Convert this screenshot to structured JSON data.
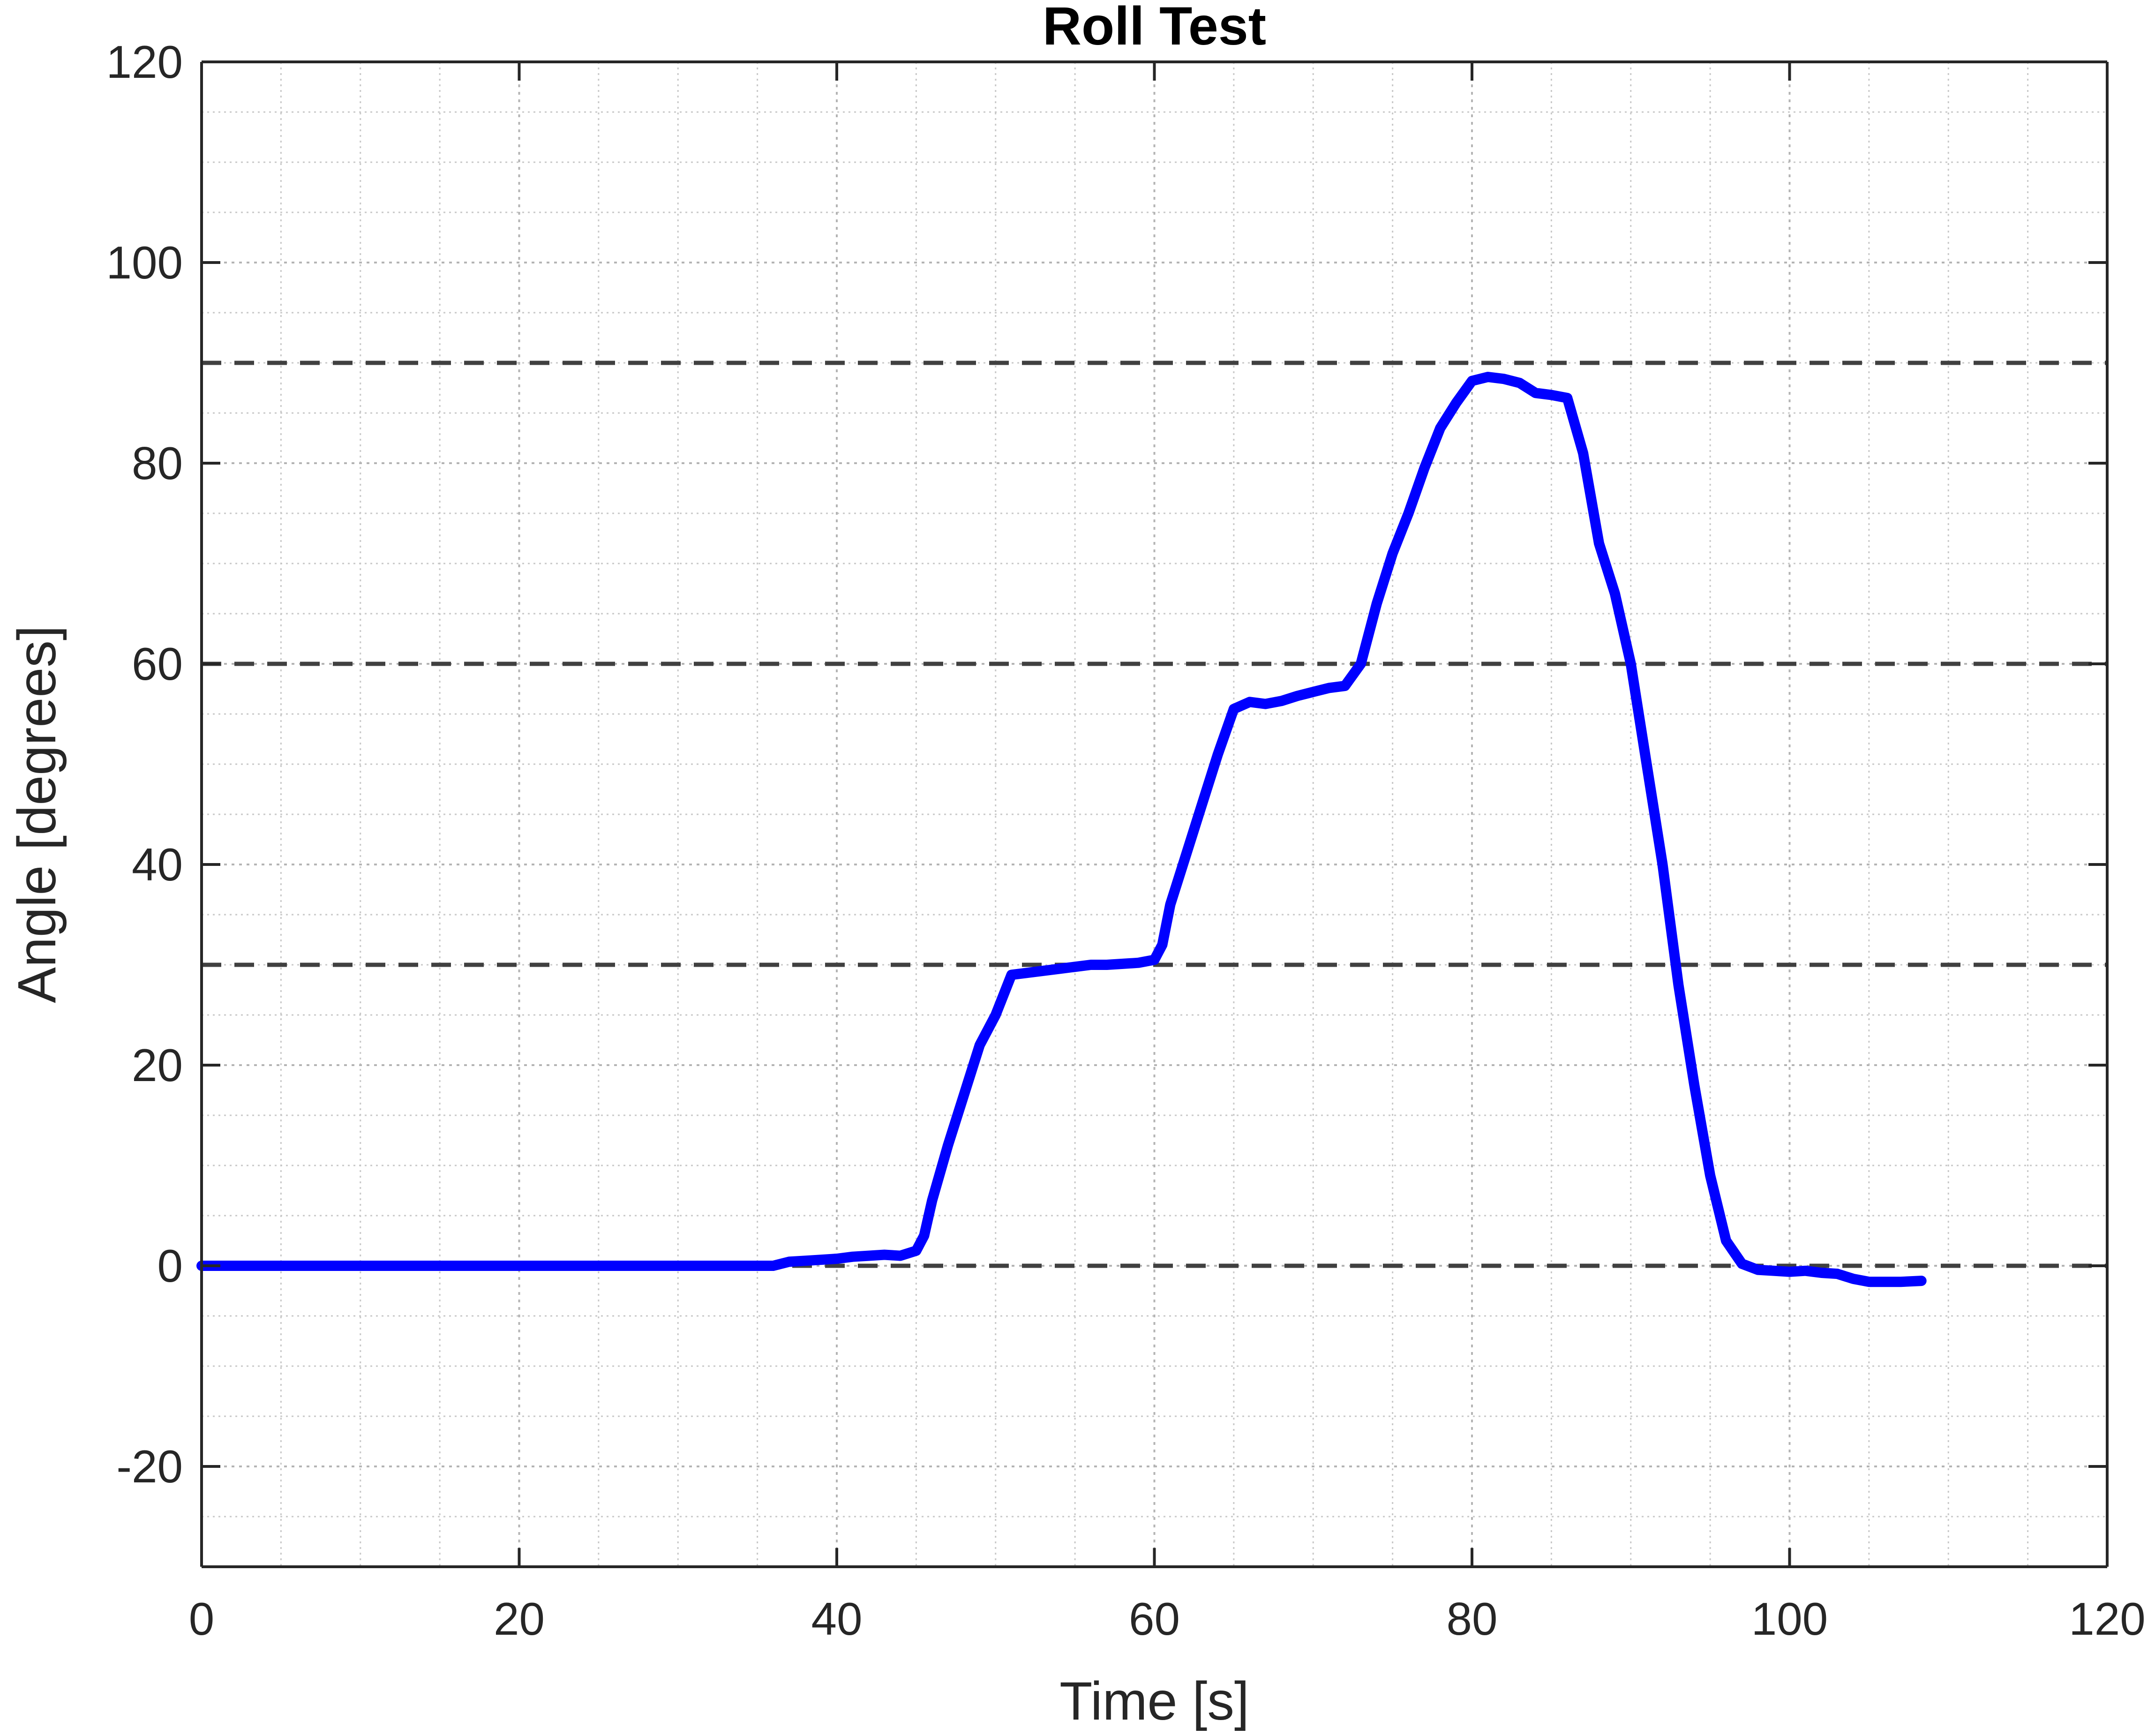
{
  "chart_data": {
    "type": "line",
    "title": "Roll Test",
    "xlabel": "Time [s]",
    "ylabel": "Angle [degrees]",
    "xlim": [
      0,
      120
    ],
    "ylim": [
      -30,
      120
    ],
    "xticks": [
      0,
      20,
      40,
      60,
      80,
      100,
      120
    ],
    "yticks": [
      -20,
      0,
      20,
      40,
      60,
      80,
      100,
      120
    ],
    "xtick_labels": [
      "0",
      "20",
      "40",
      "60",
      "80",
      "100",
      "120"
    ],
    "ytick_labels": [
      "-20",
      "0",
      "20",
      "40",
      "60",
      "80",
      "100",
      "120"
    ],
    "grid": true,
    "minor_grid": true,
    "reference_lines": [
      {
        "y": 0,
        "style": "dashed",
        "color": "#404040"
      },
      {
        "y": 30,
        "style": "dashed",
        "color": "#404040"
      },
      {
        "y": 60,
        "style": "dashed",
        "color": "#404040"
      },
      {
        "y": 90,
        "style": "dashed",
        "color": "#404040"
      }
    ],
    "series": [
      {
        "color": "#0000ff",
        "x": [
          0,
          10,
          20,
          30,
          36,
          37,
          38,
          39,
          40,
          41,
          42,
          43,
          44,
          45,
          45.5,
          46,
          47,
          48,
          49,
          50,
          51,
          52,
          53,
          54,
          55,
          56,
          57,
          58,
          59,
          60,
          60.5,
          61,
          62,
          63,
          64,
          65,
          66,
          67,
          68,
          69,
          70,
          71,
          72,
          73,
          74,
          75,
          76,
          77,
          78,
          79,
          80,
          81,
          82,
          83,
          84,
          85,
          86,
          87,
          88,
          89,
          90,
          91,
          92,
          93,
          94,
          95,
          96,
          97,
          98,
          99,
          100,
          101,
          102,
          103,
          104,
          105,
          106,
          107,
          108.3
        ],
        "y": [
          0,
          0,
          0,
          0,
          0,
          0.4,
          0.5,
          0.6,
          0.7,
          0.9,
          1.0,
          1.1,
          1.0,
          1.5,
          3.0,
          6.5,
          12,
          17,
          22,
          25,
          29,
          29.2,
          29.4,
          29.6,
          29.8,
          30.0,
          30.0,
          30.1,
          30.2,
          30.5,
          32,
          36,
          41,
          46,
          51,
          55.5,
          56.2,
          56.0,
          56.3,
          56.8,
          57.2,
          57.6,
          57.8,
          60,
          66,
          71,
          75,
          79.5,
          83.5,
          86,
          88.2,
          88.6,
          88.4,
          88.0,
          87.0,
          86.8,
          86.5,
          81,
          72,
          67,
          60,
          50,
          40,
          28,
          18,
          9,
          2.5,
          0.2,
          -0.4,
          -0.5,
          -0.6,
          -0.5,
          -0.7,
          -0.8,
          -1.3,
          -1.6,
          -1.6,
          -1.6,
          -1.5
        ]
      }
    ]
  }
}
